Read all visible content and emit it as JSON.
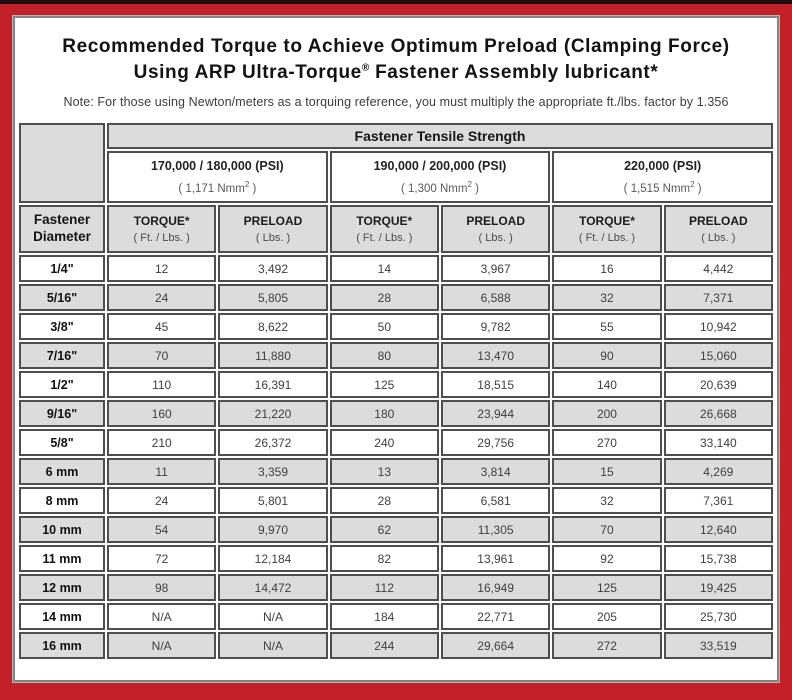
{
  "title": {
    "line1": "Recommended Torque to Achieve Optimum Preload (Clamping Force)",
    "line2_pre": "Using ARP Ultra-Torque",
    "line2_sup": "®",
    "line2_post": " Fastener Assembly lubricant*"
  },
  "note": "Note: For those using Newton/meters as a torquing reference, you must multiply the appropriate ft./lbs. factor by 1.356",
  "table": {
    "tensile_header": "Fastener Tensile Strength",
    "diameter_header": "Fastener Diameter",
    "groups": [
      {
        "psi": "170,000 / 180,000 (PSI)",
        "nmm_pre": "( 1,171 Nmm",
        "nmm_sup": "2",
        "nmm_post": " )"
      },
      {
        "psi": "190,000 / 200,000 (PSI)",
        "nmm_pre": "( 1,300 Nmm",
        "nmm_sup": "2",
        "nmm_post": " )"
      },
      {
        "psi": "220,000 (PSI)",
        "nmm_pre": "( 1,515 Nmm",
        "nmm_sup": "2",
        "nmm_post": " )"
      }
    ],
    "col_headers": {
      "torque": "TORQUE*",
      "torque_sub": "( Ft. / Lbs. )",
      "preload": "PRELOAD",
      "preload_sub": "( Lbs. )"
    },
    "rows": [
      {
        "diameter": "1/4\"",
        "values": [
          "12",
          "3,492",
          "14",
          "3,967",
          "16",
          "4,442"
        ]
      },
      {
        "diameter": "5/16\"",
        "values": [
          "24",
          "5,805",
          "28",
          "6,588",
          "32",
          "7,371"
        ]
      },
      {
        "diameter": "3/8\"",
        "values": [
          "45",
          "8,622",
          "50",
          "9,782",
          "55",
          "10,942"
        ]
      },
      {
        "diameter": "7/16\"",
        "values": [
          "70",
          "11,880",
          "80",
          "13,470",
          "90",
          "15,060"
        ]
      },
      {
        "diameter": "1/2\"",
        "values": [
          "110",
          "16,391",
          "125",
          "18,515",
          "140",
          "20,639"
        ]
      },
      {
        "diameter": "9/16\"",
        "values": [
          "160",
          "21,220",
          "180",
          "23,944",
          "200",
          "26,668"
        ]
      },
      {
        "diameter": "5/8\"",
        "values": [
          "210",
          "26,372",
          "240",
          "29,756",
          "270",
          "33,140"
        ]
      },
      {
        "diameter": "6 mm",
        "values": [
          "11",
          "3,359",
          "13",
          "3,814",
          "15",
          "4,269"
        ]
      },
      {
        "diameter": "8 mm",
        "values": [
          "24",
          "5,801",
          "28",
          "6,581",
          "32",
          "7,361"
        ]
      },
      {
        "diameter": "10 mm",
        "values": [
          "54",
          "9,970",
          "62",
          "11,305",
          "70",
          "12,640"
        ]
      },
      {
        "diameter": "11 mm",
        "values": [
          "72",
          "12,184",
          "82",
          "13,961",
          "92",
          "15,738"
        ]
      },
      {
        "diameter": "12 mm",
        "values": [
          "98",
          "14,472",
          "112",
          "16,949",
          "125",
          "19,425"
        ]
      },
      {
        "diameter": "14 mm",
        "values": [
          "N/A",
          "N/A",
          "184",
          "22,771",
          "205",
          "25,730"
        ]
      },
      {
        "diameter": "16 mm",
        "values": [
          "N/A",
          "N/A",
          "244",
          "29,664",
          "272",
          "33,519"
        ]
      }
    ]
  },
  "colors": {
    "frame_red": "#c32129",
    "top_stripe": "#1d0d0f",
    "cell_gray": "#dcdcdc",
    "cell_border": "#4e4e50"
  }
}
